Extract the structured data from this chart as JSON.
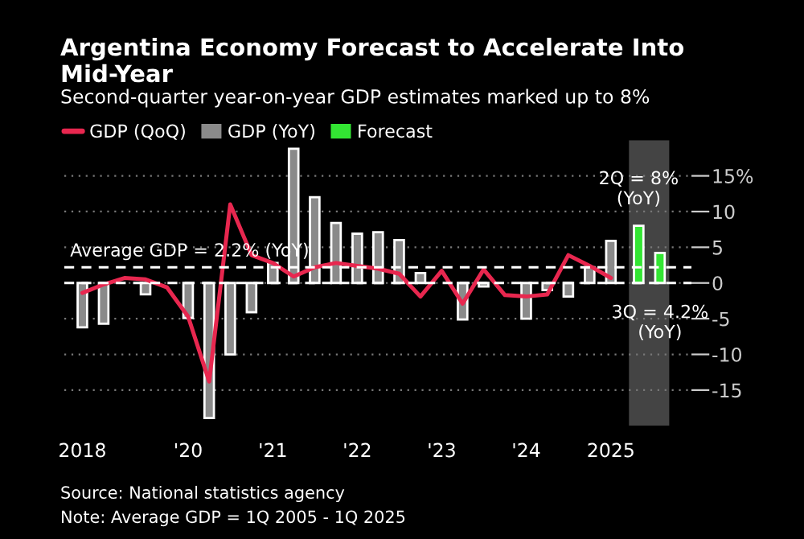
{
  "chart_data": {
    "type": "bar",
    "title": "Argentina Economy Forecast to Accelerate Into Mid-Year",
    "subtitle": "Second-quarter year-on-year GDP estimates marked up to 8%",
    "series": [
      {
        "name": "GDP (QoQ)",
        "type": "line",
        "color": "#e8274f",
        "x": [
          "2018-10",
          "2019-01",
          "2019-04",
          "2019-07",
          "2019-10",
          "2020-01",
          "2020-04",
          "2020-07",
          "2020-10",
          "2021-01",
          "2021-04",
          "2021-07",
          "2021-10",
          "2022-01",
          "2022-04",
          "2022-07",
          "2022-10",
          "2023-01",
          "2023-04",
          "2023-07",
          "2023-10",
          "2024-01",
          "2024-04",
          "2024-07",
          "2024-10",
          "2025-01"
        ],
        "values": [
          -1.4,
          -0.2,
          0.7,
          0.5,
          -0.6,
          -4.7,
          -13.8,
          11.0,
          3.9,
          2.8,
          0.9,
          2.2,
          2.8,
          2.4,
          2.0,
          1.3,
          -1.9,
          1.7,
          -2.9,
          1.9,
          -1.7,
          -1.9,
          -1.6,
          3.9,
          2.4,
          0.7
        ]
      },
      {
        "name": "GDP (YoY)",
        "color": "#8a8a8a",
        "x": [
          "2018-10",
          "2019-01",
          "2019-04",
          "2019-07",
          "2019-10",
          "2020-01",
          "2020-04",
          "2020-07",
          "2020-10",
          "2021-01",
          "2021-04",
          "2021-07",
          "2021-10",
          "2022-01",
          "2022-04",
          "2022-07",
          "2022-10",
          "2023-01",
          "2023-04",
          "2023-07",
          "2023-10",
          "2024-01",
          "2024-04",
          "2024-07",
          "2024-10",
          "2025-01"
        ],
        "values": [
          -6.2,
          -5.7,
          null,
          -1.6,
          null,
          -4.9,
          -18.9,
          -10.0,
          -4.1,
          2.8,
          18.8,
          12.0,
          8.4,
          6.9,
          7.1,
          6.0,
          1.4,
          null,
          -5.1,
          -0.5,
          null,
          -5.0,
          -1.0,
          -1.9,
          2.2,
          5.9
        ]
      },
      {
        "name": "Forecast",
        "color": "#33e633",
        "x": [
          "2025-05",
          "2025-08"
        ],
        "values": [
          8,
          4.2
        ]
      }
    ],
    "xlim": [
      "2018-07-15",
      "2025-12-15"
    ],
    "xticks": [
      {
        "value": "2018-10",
        "label": "2018"
      },
      {
        "value": "2020-01",
        "label": "'20"
      },
      {
        "value": "2021-01",
        "label": "'21"
      },
      {
        "value": "2022-01",
        "label": "'22"
      },
      {
        "value": "2023-01",
        "label": "'23"
      },
      {
        "value": "2024-01",
        "label": "'24"
      },
      {
        "value": "2025-01",
        "label": "2025"
      }
    ],
    "ylim": [
      -20,
      20
    ],
    "yticks": [
      -15,
      -10,
      -5,
      0,
      5,
      10,
      {
        "value": 15,
        "label": "15%"
      }
    ],
    "grid": "y",
    "legend": "top left",
    "ref_lines": [
      {
        "axis": "y",
        "value": 2.2,
        "label": "Average GDP = 2.2% (YoY)",
        "color": "#ffffff",
        "line_style": "dashed"
      },
      {
        "axis": "y",
        "value": 0,
        "label": null,
        "color": "#ffffff",
        "line_style": "dashed"
      }
    ],
    "bands": [
      {
        "axis": "x",
        "from": "2025-03-20",
        "to": "2025-09-10",
        "label": null,
        "color": "#444444"
      }
    ],
    "annotations": [
      {
        "text": "2Q = 8%\n(YoY)",
        "x": "2025-05",
        "y": 8
      },
      {
        "text": "3Q = 4.2%\n(YoY)",
        "x": "2025-08",
        "y": 4.2
      },
      "Source: National statistics agency",
      "Note: Average GDP = 1Q 2005 - 1Q 2025"
    ]
  }
}
